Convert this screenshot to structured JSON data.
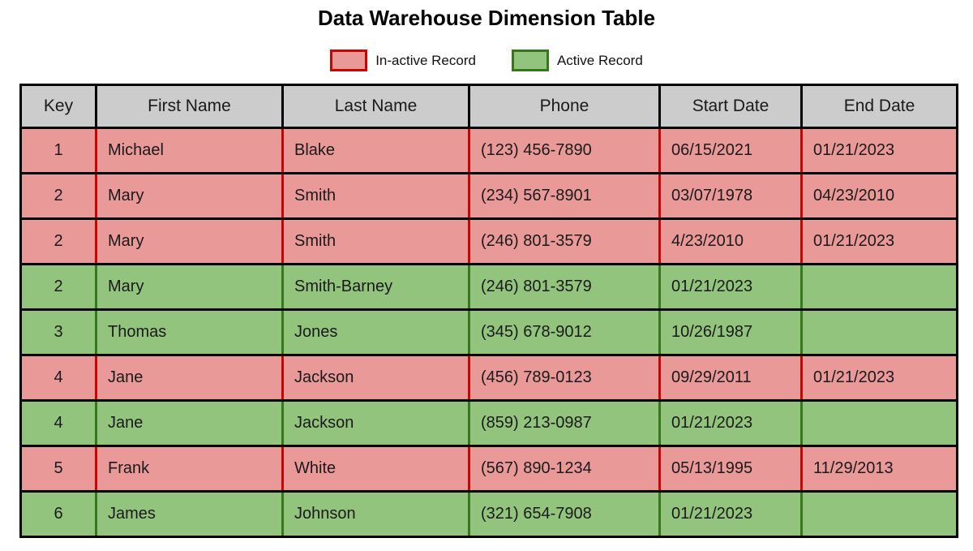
{
  "chart_data": {
    "type": "table",
    "title": "Data Warehouse Dimension Table",
    "header_bg": "#cccccc",
    "legend": [
      {
        "name": "inactive",
        "label": "In-active Record",
        "fill": "#ea9999",
        "border": "#cc0000"
      },
      {
        "name": "active",
        "label": "Active Record",
        "fill": "#93c47d",
        "border": "#38761d"
      }
    ],
    "columns": [
      "Key",
      "First Name",
      "Last Name",
      "Phone",
      "Start Date",
      "End Date"
    ],
    "rows": [
      {
        "status": "inactive",
        "cells": [
          "1",
          "Michael",
          "Blake",
          "(123) 456-7890",
          "06/15/2021",
          "01/21/2023"
        ]
      },
      {
        "status": "inactive",
        "cells": [
          "2",
          "Mary",
          "Smith",
          "(234) 567-8901",
          "03/07/1978",
          "04/23/2010"
        ]
      },
      {
        "status": "inactive",
        "cells": [
          "2",
          "Mary",
          "Smith",
          "(246) 801-3579",
          "4/23/2010",
          "01/21/2023"
        ]
      },
      {
        "status": "active",
        "cells": [
          "2",
          "Mary",
          "Smith-Barney",
          "(246) 801-3579",
          "01/21/2023",
          ""
        ]
      },
      {
        "status": "active",
        "cells": [
          "3",
          "Thomas",
          "Jones",
          "(345) 678-9012",
          "10/26/1987",
          ""
        ]
      },
      {
        "status": "inactive",
        "cells": [
          "4",
          "Jane",
          "Jackson",
          "(456) 789-0123",
          "09/29/2011",
          "01/21/2023"
        ]
      },
      {
        "status": "active",
        "cells": [
          "4",
          "Jane",
          "Jackson",
          "(859) 213-0987",
          "01/21/2023",
          ""
        ]
      },
      {
        "status": "inactive",
        "cells": [
          "5",
          "Frank",
          "White",
          "(567) 890-1234",
          "05/13/1995",
          "11/29/2013"
        ]
      },
      {
        "status": "active",
        "cells": [
          "6",
          "James",
          "Johnson",
          "(321) 654-7908",
          "01/21/2023",
          ""
        ]
      }
    ]
  }
}
